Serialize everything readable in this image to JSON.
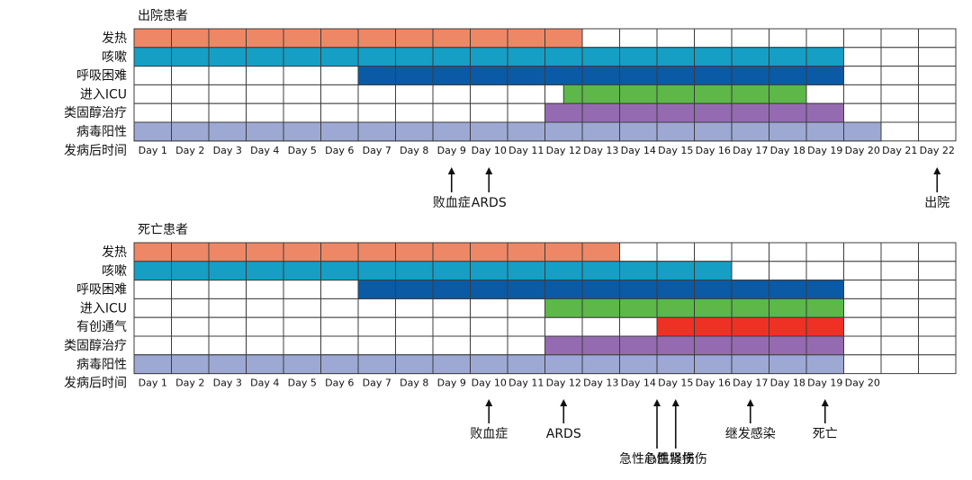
{
  "chart_data": [
    {
      "type": "gantt",
      "title": "出院患者",
      "days": [
        "Day 1",
        "Day 2",
        "Day 3",
        "Day 4",
        "Day 5",
        "Day 6",
        "Day 7",
        "Day 8",
        "Day 9",
        "Day 10",
        "Day 11",
        "Day 12",
        "Day 13",
        "Day 14",
        "Day 15",
        "Day 16",
        "Day 17",
        "Day 18",
        "Day 19",
        "Day 20",
        "Day 21",
        "Day 22"
      ],
      "axis_label": "发病后时间",
      "rows": [
        {
          "label": "发热",
          "start_day": 1,
          "end_day": 12,
          "color": "#EE8765"
        },
        {
          "label": "咳嗽",
          "start_day": 1,
          "end_day": 19,
          "color": "#159FC5"
        },
        {
          "label": "呼吸困难",
          "start_day": 7,
          "end_day": 19,
          "color": "#0B5AA5"
        },
        {
          "label": "进入ICU",
          "start_day": 12.5,
          "end_day": 18,
          "color": "#5DB749"
        },
        {
          "label": "类固醇治疗",
          "start_day": 12,
          "end_day": 19,
          "color": "#946BB0"
        },
        {
          "label": "病毒阳性",
          "start_day": 1,
          "end_day": 20,
          "color": "#9DA9D3"
        }
      ],
      "events": [
        {
          "label": "败血症",
          "day": 9
        },
        {
          "label": "ARDS",
          "day": 10
        },
        {
          "label": "出院",
          "day": 22
        }
      ]
    },
    {
      "type": "gantt",
      "title": "死亡患者",
      "days": [
        "Day 1",
        "Day 2",
        "Day 3",
        "Day 4",
        "Day 5",
        "Day 6",
        "Day 7",
        "Day 8",
        "Day 9",
        "Day 10",
        "Day 11",
        "Day 12",
        "Day 13",
        "Day 14",
        "Day 15",
        "Day 16",
        "Day 17",
        "Day 18",
        "Day 19",
        "Day 20"
      ],
      "axis_label": "发病后时间",
      "rows": [
        {
          "label": "发热",
          "start_day": 1,
          "end_day": 13,
          "color": "#EE8765"
        },
        {
          "label": "咳嗽",
          "start_day": 1,
          "end_day": 16,
          "color": "#159FC5"
        },
        {
          "label": "呼吸困难",
          "start_day": 7,
          "end_day": 19,
          "color": "#0B5AA5"
        },
        {
          "label": "进入ICU",
          "start_day": 12,
          "end_day": 19,
          "color": "#5DB749"
        },
        {
          "label": "有创通气",
          "start_day": 15,
          "end_day": 19,
          "color": "#EE3124"
        },
        {
          "label": "类固醇治疗",
          "start_day": 12,
          "end_day": 19,
          "color": "#946BB0"
        },
        {
          "label": "病毒阳性",
          "start_day": 1,
          "end_day": 19,
          "color": "#9DA9D3"
        }
      ],
      "events": [
        {
          "label": "败血症",
          "day": 10,
          "label_row": 1
        },
        {
          "label": "ARDS",
          "day": 12,
          "label_row": 1
        },
        {
          "label": "急性心肌损伤",
          "day": 14.5,
          "label_row": 2
        },
        {
          "label": "急性肾损伤",
          "day": 15,
          "label_row": 2
        },
        {
          "label": "继发感染",
          "day": 17,
          "label_row": 1
        },
        {
          "label": "死亡",
          "day": 19,
          "label_row": 1
        }
      ]
    }
  ],
  "grid_color": "#3C3C3C"
}
